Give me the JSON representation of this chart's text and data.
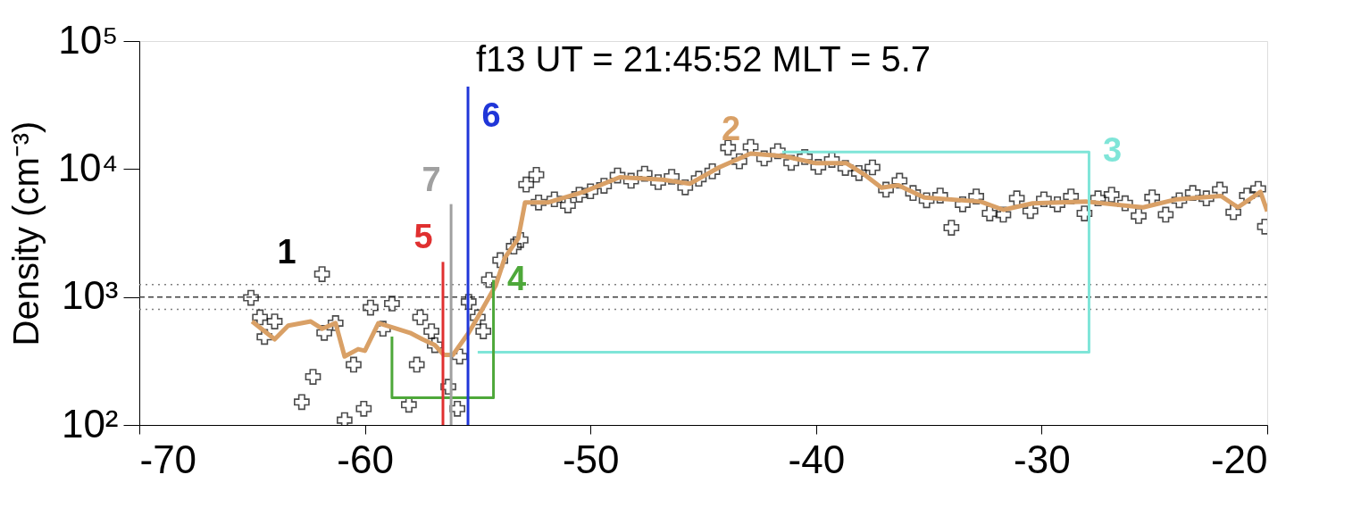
{
  "chart_data": {
    "type": "scatter",
    "title": "f13  UT = 21:45:52   MLT =  5.7",
    "ylabel": "Density (cm⁻³)",
    "log": "y",
    "grid": false,
    "xlim": [
      -70,
      -20
    ],
    "xticks": [
      -70,
      -60,
      -50,
      -40,
      -30,
      -20
    ],
    "ylim": [
      100,
      100000
    ],
    "yticks": [
      {
        "value": 100,
        "label": "10²"
      },
      {
        "value": 1000,
        "label": "10³"
      },
      {
        "value": 10000,
        "label": "10⁴"
      },
      {
        "value": 100000,
        "label": "10⁵"
      }
    ],
    "series": [
      {
        "name": "1",
        "marker": "cross",
        "color": "#000000",
        "x": [
          -65.05,
          -64.65,
          -64.45,
          -64.0,
          -62.8,
          -62.3,
          -61.9,
          -61.8,
          -61.3,
          -60.9,
          -60.5,
          -60.05,
          -59.75,
          -59.2,
          -58.8,
          -58.05,
          -57.7,
          -57.55,
          -57.05,
          -56.9,
          -56.3,
          -55.9,
          -55.8,
          -55.4,
          -55.0,
          -54.75,
          -54.5,
          -54.0,
          -53.4,
          -53.1,
          -52.85,
          -52.4,
          -52.3,
          -51.6,
          -51.0,
          -50.5,
          -50.0,
          -49.4,
          -48.8,
          -48.2,
          -47.6,
          -47.0,
          -46.4,
          -45.8,
          -45.2,
          -44.6,
          -43.9,
          -43.4,
          -42.9,
          -42.3,
          -41.7,
          -41.1,
          -40.5,
          -39.9,
          -39.3,
          -38.7,
          -38.1,
          -37.5,
          -36.9,
          -36.3,
          -35.7,
          -35.1,
          -34.5,
          -34.0,
          -33.5,
          -32.9,
          -32.3,
          -31.7,
          -31.1,
          -30.5,
          -29.9,
          -29.3,
          -28.7,
          -28.1,
          -27.5,
          -26.9,
          -26.3,
          -25.7,
          -25.1,
          -24.5,
          -23.9,
          -23.3,
          -22.7,
          -22.1,
          -21.5,
          -20.9,
          -20.4,
          -20.1
        ],
        "values": [
          986,
          694,
          488,
          644,
          151,
          238,
          1510,
          525,
          625,
          109,
          296,
          134,
          826,
          565,
          889,
          144,
          296,
          694,
          540,
          421,
          199,
          134,
          343,
          916,
          694,
          540,
          1360,
          1940,
          2480,
          2790,
          7570,
          9020,
          5480,
          5800,
          5200,
          6300,
          6700,
          7400,
          8900,
          8100,
          9200,
          7900,
          8700,
          7200,
          8400,
          9600,
          14700,
          11500,
          14900,
          12100,
          13800,
          11200,
          12400,
          10400,
          11800,
          10200,
          9300,
          10300,
          6900,
          8100,
          6500,
          5700,
          6200,
          3480,
          5300,
          6100,
          4500,
          4400,
          5900,
          4700,
          5800,
          5300,
          6100,
          4500,
          5900,
          6300,
          5400,
          4300,
          6000,
          4400,
          5700,
          6500,
          5900,
          6900,
          4600,
          6200,
          7000,
          3550
        ]
      },
      {
        "name": "2",
        "type": "line",
        "color": "#d9a066",
        "x": [
          -65.0,
          -64.0,
          -63.4,
          -62.4,
          -61.9,
          -61.3,
          -60.9,
          -60.3,
          -60.0,
          -59.4,
          -58.6,
          -58.0,
          -57.45,
          -56.9,
          -56.5,
          -56.1,
          -55.4,
          -55.0,
          -54.2,
          -53.8,
          -53.2,
          -52.9,
          -51.9,
          -50.3,
          -48.7,
          -46.8,
          -45.6,
          -44.3,
          -42.9,
          -41.4,
          -40.0,
          -38.65,
          -37.9,
          -37.1,
          -36.35,
          -35.2,
          -32.7,
          -31.7,
          -30.4,
          -28.0,
          -25.5,
          -24.0,
          -22.05,
          -21.3,
          -20.3,
          -20.0
        ],
        "values": [
          644,
          467,
          598,
          644,
          565,
          625,
          343,
          391,
          380,
          625,
          565,
          525,
          467,
          421,
          353,
          353,
          525,
          694,
          1230,
          2020,
          2880,
          5480,
          5480,
          6640,
          8630,
          8260,
          7670,
          10300,
          13200,
          12600,
          11100,
          11100,
          9160,
          7150,
          7470,
          5990,
          5560,
          4800,
          5400,
          5560,
          5020,
          5810,
          6160,
          5020,
          6640,
          4670
        ]
      },
      {
        "name": "3",
        "type": "line",
        "color": "#7fe5d8",
        "x": [
          -55.0,
          -27.9,
          -27.9,
          -41.5
        ],
        "values": [
          370,
          370,
          13600,
          13600
        ]
      },
      {
        "name": "4",
        "type": "line",
        "color": "#4ea83a",
        "x": [
          -58.8,
          -58.8,
          -54.3,
          -54.3
        ],
        "values": [
          490,
          163,
          163,
          1360
        ]
      },
      {
        "name": "5",
        "type": "line",
        "color": "#e03030",
        "x": [
          -56.54,
          -56.54
        ],
        "values": [
          100,
          1880
        ]
      },
      {
        "name": "6",
        "type": "line",
        "color": "#2036d8",
        "x": [
          -55.43,
          -55.43
        ],
        "values": [
          100,
          44000
        ]
      },
      {
        "name": "7",
        "type": "line",
        "color": "#a0a0a0",
        "x": [
          -56.18,
          -56.18
        ],
        "values": [
          100,
          5320
        ]
      }
    ],
    "ref_lines": [
      {
        "axis": "y",
        "value": 1250,
        "line_style": "dotted",
        "color": "#808080"
      },
      {
        "axis": "y",
        "value": 1000,
        "line_style": "dashed",
        "color": "#404040"
      },
      {
        "axis": "y",
        "value": 800,
        "line_style": "dotted",
        "color": "#808080"
      }
    ]
  }
}
